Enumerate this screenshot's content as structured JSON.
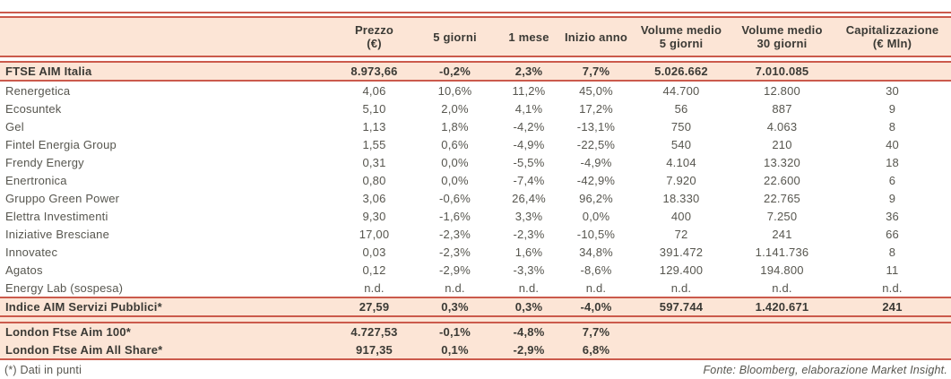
{
  "colors": {
    "accent_border": "#cb5a4c",
    "band_background": "#fce5d6",
    "body_text": "#57564f",
    "bold_text": "#3b3a35"
  },
  "table": {
    "columns": [
      {
        "line1": "Prezzo",
        "line2": "(€)"
      },
      {
        "line1": "5 giorni",
        "line2": ""
      },
      {
        "line1": "1 mese",
        "line2": ""
      },
      {
        "line1": "Inizio anno",
        "line2": ""
      },
      {
        "line1": "Volume medio",
        "line2": "5 giorni"
      },
      {
        "line1": "Volume medio",
        "line2": "30 giorni"
      },
      {
        "line1": "Capitalizzazione",
        "line2": "(€ Mln)"
      }
    ],
    "index_rows": [
      {
        "name": "FTSE AIM Italia",
        "cells": [
          "8.973,66",
          "-0,2%",
          "2,3%",
          "7,7%",
          "5.026.662",
          "7.010.085",
          ""
        ]
      }
    ],
    "company_rows": [
      {
        "name": "Renergetica",
        "cells": [
          "4,06",
          "10,6%",
          "11,2%",
          "45,0%",
          "44.700",
          "12.800",
          "30"
        ]
      },
      {
        "name": "Ecosuntek",
        "cells": [
          "5,10",
          "2,0%",
          "4,1%",
          "17,2%",
          "56",
          "887",
          "9"
        ]
      },
      {
        "name": "Gel",
        "cells": [
          "1,13",
          "1,8%",
          "-4,2%",
          "-13,1%",
          "750",
          "4.063",
          "8"
        ]
      },
      {
        "name": "Fintel Energia Group",
        "cells": [
          "1,55",
          "0,6%",
          "-4,9%",
          "-22,5%",
          "540",
          "210",
          "40"
        ]
      },
      {
        "name": "Frendy Energy",
        "cells": [
          "0,31",
          "0,0%",
          "-5,5%",
          "-4,9%",
          "4.104",
          "13.320",
          "18"
        ]
      },
      {
        "name": "Enertronica",
        "cells": [
          "0,80",
          "0,0%",
          "-7,4%",
          "-42,9%",
          "7.920",
          "22.600",
          "6"
        ]
      },
      {
        "name": "Gruppo Green Power",
        "cells": [
          "3,06",
          "-0,6%",
          "26,4%",
          "96,2%",
          "18.330",
          "22.765",
          "9"
        ]
      },
      {
        "name": "Elettra Investimenti",
        "cells": [
          "9,30",
          "-1,6%",
          "3,3%",
          "0,0%",
          "400",
          "7.250",
          "36"
        ]
      },
      {
        "name": "Iniziative Bresciane",
        "cells": [
          "17,00",
          "-2,3%",
          "-2,3%",
          "-10,5%",
          "72",
          "241",
          "66"
        ]
      },
      {
        "name": "Innovatec",
        "cells": [
          "0,03",
          "-2,3%",
          "1,6%",
          "34,8%",
          "391.472",
          "1.141.736",
          "8"
        ]
      },
      {
        "name": "Agatos",
        "cells": [
          "0,12",
          "-2,9%",
          "-3,3%",
          "-8,6%",
          "129.400",
          "194.800",
          "11"
        ]
      },
      {
        "name": "Energy Lab (sospesa)",
        "cells": [
          "n.d.",
          "n.d.",
          "n.d.",
          "n.d.",
          "n.d.",
          "n.d.",
          "n.d."
        ]
      }
    ],
    "servizi_rows": [
      {
        "name": "Indice AIM Servizi Pubblici*",
        "cells": [
          "27,59",
          "0,3%",
          "0,3%",
          "-4,0%",
          "597.744",
          "1.420.671",
          "241"
        ]
      }
    ],
    "london_rows": [
      {
        "name": "London Ftse Aim 100*",
        "cells": [
          "4.727,53",
          "-0,1%",
          "-4,8%",
          "7,7%",
          "",
          "",
          ""
        ]
      },
      {
        "name": "London Ftse Aim All Share*",
        "cells": [
          "917,35",
          "0,1%",
          "-2,9%",
          "6,8%",
          "",
          "",
          ""
        ]
      }
    ]
  },
  "footer": {
    "footnote": "(*) Dati in punti",
    "source": "Fonte: Bloomberg, elaborazione Market Insight."
  }
}
